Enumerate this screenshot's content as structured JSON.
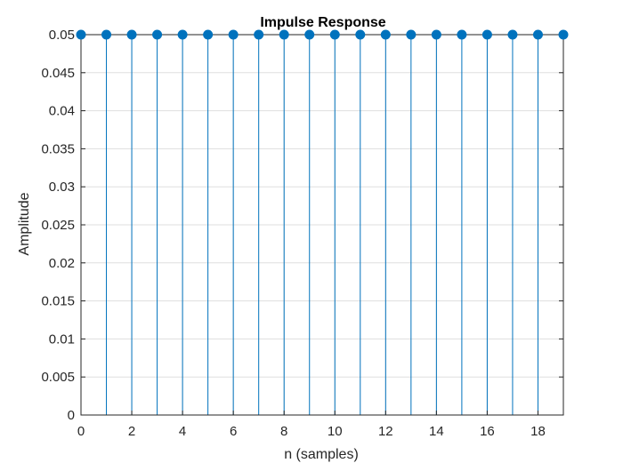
{
  "chart_data": {
    "type": "stem",
    "title": "Impulse Response",
    "xlabel": "n (samples)",
    "ylabel": "Amplitude",
    "xlim": [
      0,
      19
    ],
    "ylim": [
      0,
      0.05
    ],
    "x_ticks": [
      0,
      2,
      4,
      6,
      8,
      10,
      12,
      14,
      16,
      18
    ],
    "x_tick_labels": [
      "0",
      "2",
      "4",
      "6",
      "8",
      "10",
      "12",
      "14",
      "16",
      "18"
    ],
    "y_ticks": [
      0,
      0.005,
      0.01,
      0.015,
      0.02,
      0.025,
      0.03,
      0.035,
      0.04,
      0.045,
      0.05
    ],
    "y_tick_labels": [
      "0",
      "0.005",
      "0.01",
      "0.015",
      "0.02",
      "0.025",
      "0.03",
      "0.035",
      "0.04",
      "0.045",
      "0.05"
    ],
    "grid": true,
    "series": [
      {
        "x": [
          0,
          1,
          2,
          3,
          4,
          5,
          6,
          7,
          8,
          9,
          10,
          11,
          12,
          13,
          14,
          15,
          16,
          17,
          18,
          19
        ],
        "values": [
          0.05,
          0.05,
          0.05,
          0.05,
          0.05,
          0.05,
          0.05,
          0.05,
          0.05,
          0.05,
          0.05,
          0.05,
          0.05,
          0.05,
          0.05,
          0.05,
          0.05,
          0.05,
          0.05,
          0.05
        ],
        "color": "#0072BD"
      }
    ]
  }
}
